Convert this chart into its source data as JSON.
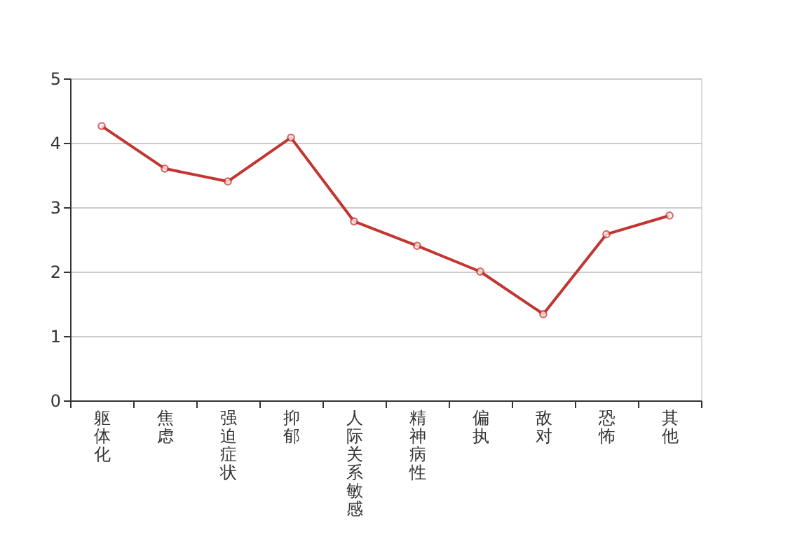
{
  "chart_data": {
    "type": "line",
    "categories": [
      "躯体化",
      "焦虑",
      "强迫症状",
      "抑郁",
      "人际关系敏感",
      "精神病性",
      "偏执",
      "敌对",
      "恐怖",
      "其他"
    ],
    "series": [
      {
        "color": "#c23531",
        "values": [
          4.26,
          3.6,
          3.4,
          4.08,
          2.78,
          2.4,
          2.0,
          1.34,
          2.58,
          2.87
        ]
      }
    ],
    "ylim": [
      0,
      5
    ],
    "yticks": [
      0,
      1,
      2,
      3,
      4,
      5
    ],
    "grid": "y",
    "marker": "circle",
    "line_style": "solid",
    "legend": false
  }
}
